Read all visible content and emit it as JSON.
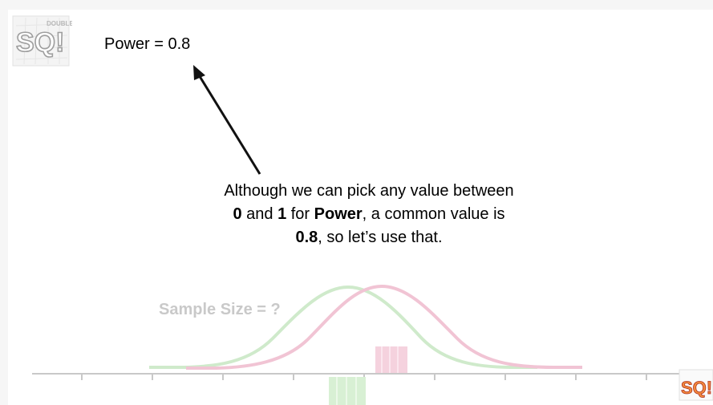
{
  "power_label": "Power = 0.8",
  "caption": {
    "line1": "Although we can pick any value between",
    "line2_bold_a": "0",
    "line2_mid_a": " and ",
    "line2_bold_b": "1",
    "line2_mid_b": " for ",
    "line2_bold_c": "Power",
    "line2_end": ", a common value is",
    "line3_bold": "0.8",
    "line3_end": ", so let’s use that."
  },
  "sample_size_label": "Sample Size = ?",
  "logo": {
    "top_left_text": "SQ!",
    "small_text": "DOUBLE BAM!!!",
    "bottom_right_text": "SQ!"
  },
  "colors": {
    "green_curve": "#cfeacb",
    "pink_curve": "#f1c4d4",
    "axis": "#c8c8c8",
    "faded_text": "#c9c9c9"
  }
}
